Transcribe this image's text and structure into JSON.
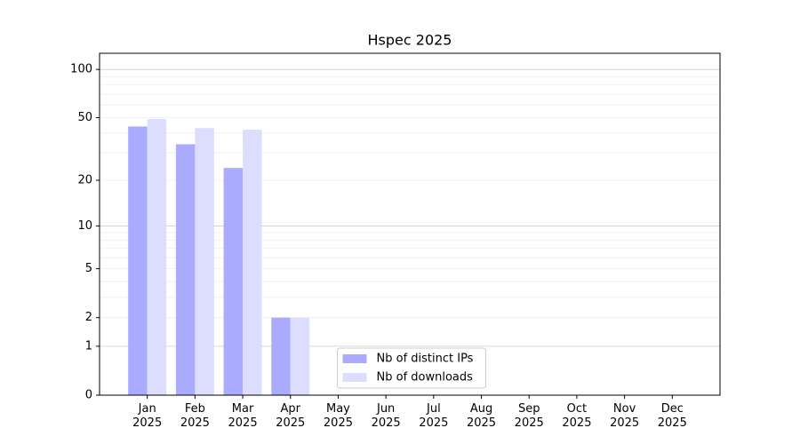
{
  "chart_data": {
    "type": "bar",
    "title": "Hspec 2025",
    "categories": [
      "Jan\n2025",
      "Feb\n2025",
      "Mar\n2025",
      "Apr\n2025",
      "May\n2025",
      "Jun\n2025",
      "Jul\n2025",
      "Aug\n2025",
      "Sep\n2025",
      "Oct\n2025",
      "Nov\n2025",
      "Dec\n2025"
    ],
    "series": [
      {
        "name": "Nb of distinct IPs",
        "color": "#aaaaff",
        "values": [
          44,
          34,
          24,
          2,
          null,
          null,
          null,
          null,
          null,
          null,
          null,
          null
        ]
      },
      {
        "name": "Nb of downloads",
        "color": "#ddddff",
        "values": [
          49,
          43,
          42,
          2,
          null,
          null,
          null,
          null,
          null,
          null,
          null,
          null
        ]
      }
    ],
    "yscale": "log1p",
    "ylim": [
      0,
      126
    ],
    "yticks": [
      0,
      1,
      2,
      5,
      10,
      20,
      50,
      100
    ],
    "ygrid": {
      "major": [
        1,
        10,
        100
      ],
      "minor": [
        2,
        3,
        4,
        5,
        6,
        7,
        8,
        9,
        20,
        30,
        40,
        50,
        60,
        70,
        80,
        90
      ]
    },
    "legend": "lower center"
  }
}
